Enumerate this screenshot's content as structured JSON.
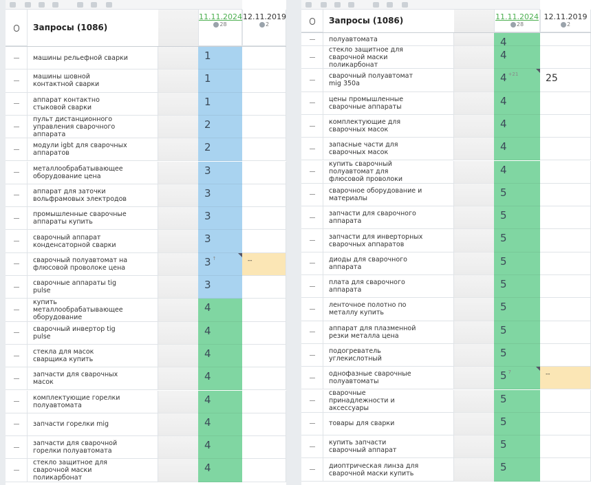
{
  "panels": [
    {
      "title": "Запросы (1086)",
      "dates": [
        {
          "label": "11.11.2024",
          "count": "28"
        },
        {
          "label": "12.11.2019",
          "count": "2"
        }
      ],
      "partial_row": null,
      "rows": [
        {
          "query": "машины рельефной сварки",
          "rank": 1
        },
        {
          "query": "машины шовной контактной сварки",
          "rank": 1
        },
        {
          "query": "аппарат контактно стыковой сварки",
          "rank": 1
        },
        {
          "query": "пульт дистанционного управления сварочного аппарата",
          "rank": 2
        },
        {
          "query": "модули igbt для сварочных аппаратов",
          "rank": 2
        },
        {
          "query": "металлообрабатывающее оборудование цена",
          "rank": 3
        },
        {
          "query": "аппарат для заточки вольфрамовых электродов",
          "rank": 3
        },
        {
          "query": "промышленные сварочные аппараты купить",
          "rank": 3
        },
        {
          "query": "сварочный аппарат конденсаторной сварки",
          "rank": 3
        },
        {
          "query": "сварочный полуавтомат на флюсовой проволоке цена",
          "rank": 3,
          "change": "↑",
          "old": "--"
        },
        {
          "query": "сварочные аппараты tig pulse",
          "rank": 3
        },
        {
          "query": "купить металлообрабатывающее оборудование",
          "rank": 4
        },
        {
          "query": "сварочный инвертор tig pulse",
          "rank": 4
        },
        {
          "query": "стекла для масок сварщика купить",
          "rank": 4
        },
        {
          "query": "запчасти для сварочных масок",
          "rank": 4
        },
        {
          "query": "комплектующие горелки полуавтомата",
          "rank": 4
        },
        {
          "query": "запчасти горелки mig",
          "rank": 4
        },
        {
          "query": "запчасти для сварочной горелки полуавтомата",
          "rank": 4
        },
        {
          "query": "стекло защитное для сварочной маски поликарбонат",
          "rank": 4
        }
      ]
    },
    {
      "title": "Запросы (1086)",
      "dates": [
        {
          "label": "11.11.2024",
          "count": "28"
        },
        {
          "label": "12.11.2019",
          "count": "2"
        }
      ],
      "partial_row": {
        "query": "полуавтомата",
        "rank": 4
      },
      "rows": [
        {
          "query": "стекло защитное для сварочной маски поликарбонат",
          "rank": 4
        },
        {
          "query": "сварочный полуавтомат mig 350a",
          "rank": 4,
          "change": "+21",
          "old": "25"
        },
        {
          "query": "цены промышленные сварочные аппараты",
          "rank": 4
        },
        {
          "query": "комплектующие для сварочных масок",
          "rank": 4
        },
        {
          "query": "запасные части для сварочных масок",
          "rank": 4
        },
        {
          "query": "купить сварочный полуавтомат для флюсовой проволоки",
          "rank": 4
        },
        {
          "query": "сварочное оборудование и материалы",
          "rank": 5
        },
        {
          "query": "запчасти для сварочного аппарата",
          "rank": 5
        },
        {
          "query": "запчасти для инверторных сварочных аппаратов",
          "rank": 5
        },
        {
          "query": "диоды для сварочного аппарата",
          "rank": 5
        },
        {
          "query": "плата для сварочного аппарата",
          "rank": 5
        },
        {
          "query": "ленточное полотно по металлу купить",
          "rank": 5
        },
        {
          "query": "аппарат для плазменной резки металла цена",
          "rank": 5
        },
        {
          "query": "подогреватель углекислотный",
          "rank": 5
        },
        {
          "query": "однофазные сварочные полуавтоматы",
          "rank": 5,
          "change": "7",
          "old": "--"
        },
        {
          "query": "сварочные принадлежности и аксессуары",
          "rank": 5
        },
        {
          "query": "товары для сварки",
          "rank": 5
        },
        {
          "query": "купить запчасти сварочный аппарат",
          "rank": 5
        },
        {
          "query": "диоптрическая линза для сварочной маски купить",
          "rank": 5
        }
      ]
    }
  ]
}
